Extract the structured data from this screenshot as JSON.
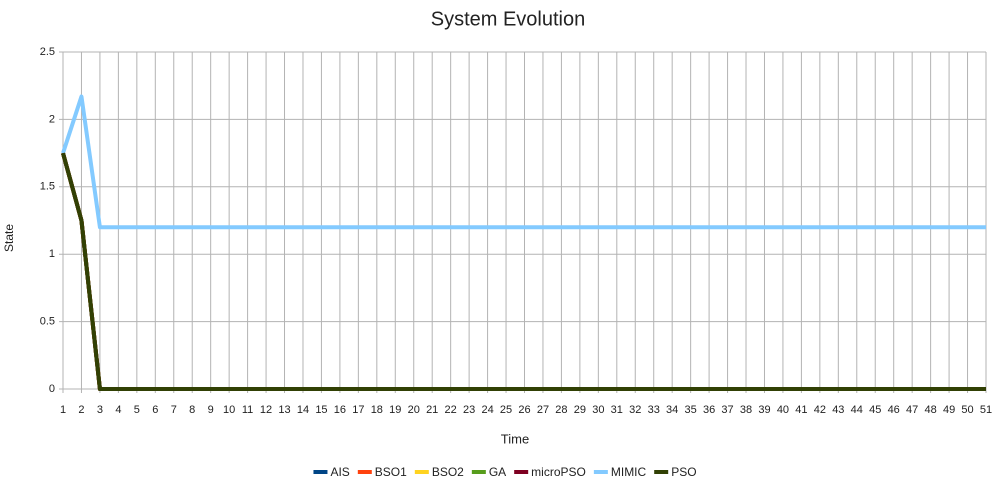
{
  "chart_data": {
    "type": "line",
    "title": "System Evolution",
    "x_label": "Time",
    "y_label": "State",
    "x": [
      1,
      2,
      3,
      4,
      5,
      6,
      7,
      8,
      9,
      10,
      11,
      12,
      13,
      14,
      15,
      16,
      17,
      18,
      19,
      20,
      21,
      22,
      23,
      24,
      25,
      26,
      27,
      28,
      29,
      30,
      31,
      32,
      33,
      34,
      35,
      36,
      37,
      38,
      39,
      40,
      41,
      42,
      43,
      44,
      45,
      46,
      47,
      48,
      49,
      50,
      51
    ],
    "xlim": [
      1,
      51
    ],
    "ylim": [
      0,
      2.5
    ],
    "yticks": [
      0,
      0.5,
      1,
      1.5,
      2,
      2.5
    ],
    "grid": true,
    "legend": "bottom",
    "series": [
      {
        "name": "AIS",
        "color": "#004586",
        "values": [
          1.75,
          1.25,
          0,
          0,
          0,
          0,
          0,
          0,
          0,
          0,
          0,
          0,
          0,
          0,
          0,
          0,
          0,
          0,
          0,
          0,
          0,
          0,
          0,
          0,
          0,
          0,
          0,
          0,
          0,
          0,
          0,
          0,
          0,
          0,
          0,
          0,
          0,
          0,
          0,
          0,
          0,
          0,
          0,
          0,
          0,
          0,
          0,
          0,
          0,
          0,
          0
        ]
      },
      {
        "name": "BSO1",
        "color": "#ff420e",
        "values": [
          1.75,
          1.25,
          0,
          0,
          0,
          0,
          0,
          0,
          0,
          0,
          0,
          0,
          0,
          0,
          0,
          0,
          0,
          0,
          0,
          0,
          0,
          0,
          0,
          0,
          0,
          0,
          0,
          0,
          0,
          0,
          0,
          0,
          0,
          0,
          0,
          0,
          0,
          0,
          0,
          0,
          0,
          0,
          0,
          0,
          0,
          0,
          0,
          0,
          0,
          0,
          0
        ]
      },
      {
        "name": "BSO2",
        "color": "#ffd320",
        "values": [
          1.75,
          1.25,
          0,
          0,
          0,
          0,
          0,
          0,
          0,
          0,
          0,
          0,
          0,
          0,
          0,
          0,
          0,
          0,
          0,
          0,
          0,
          0,
          0,
          0,
          0,
          0,
          0,
          0,
          0,
          0,
          0,
          0,
          0,
          0,
          0,
          0,
          0,
          0,
          0,
          0,
          0,
          0,
          0,
          0,
          0,
          0,
          0,
          0,
          0,
          0,
          0
        ]
      },
      {
        "name": "GA",
        "color": "#579d1c",
        "values": [
          1.75,
          1.25,
          0,
          0,
          0,
          0,
          0,
          0,
          0,
          0,
          0,
          0,
          0,
          0,
          0,
          0,
          0,
          0,
          0,
          0,
          0,
          0,
          0,
          0,
          0,
          0,
          0,
          0,
          0,
          0,
          0,
          0,
          0,
          0,
          0,
          0,
          0,
          0,
          0,
          0,
          0,
          0,
          0,
          0,
          0,
          0,
          0,
          0,
          0,
          0,
          0
        ]
      },
      {
        "name": "microPSO",
        "color": "#7e0021",
        "values": [
          1.75,
          1.25,
          0,
          0,
          0,
          0,
          0,
          0,
          0,
          0,
          0,
          0,
          0,
          0,
          0,
          0,
          0,
          0,
          0,
          0,
          0,
          0,
          0,
          0,
          0,
          0,
          0,
          0,
          0,
          0,
          0,
          0,
          0,
          0,
          0,
          0,
          0,
          0,
          0,
          0,
          0,
          0,
          0,
          0,
          0,
          0,
          0,
          0,
          0,
          0,
          0
        ]
      },
      {
        "name": "MIMIC",
        "color": "#83caff",
        "values": [
          1.75,
          2.17,
          1.2,
          1.2,
          1.2,
          1.2,
          1.2,
          1.2,
          1.2,
          1.2,
          1.2,
          1.2,
          1.2,
          1.2,
          1.2,
          1.2,
          1.2,
          1.2,
          1.2,
          1.2,
          1.2,
          1.2,
          1.2,
          1.2,
          1.2,
          1.2,
          1.2,
          1.2,
          1.2,
          1.2,
          1.2,
          1.2,
          1.2,
          1.2,
          1.2,
          1.2,
          1.2,
          1.2,
          1.2,
          1.2,
          1.2,
          1.2,
          1.2,
          1.2,
          1.2,
          1.2,
          1.2,
          1.2,
          1.2,
          1.2,
          1.2
        ]
      },
      {
        "name": "PSO",
        "color": "#314004",
        "values": [
          1.75,
          1.25,
          0,
          0,
          0,
          0,
          0,
          0,
          0,
          0,
          0,
          0,
          0,
          0,
          0,
          0,
          0,
          0,
          0,
          0,
          0,
          0,
          0,
          0,
          0,
          0,
          0,
          0,
          0,
          0,
          0,
          0,
          0,
          0,
          0,
          0,
          0,
          0,
          0,
          0,
          0,
          0,
          0,
          0,
          0,
          0,
          0,
          0,
          0,
          0,
          0
        ]
      }
    ]
  }
}
